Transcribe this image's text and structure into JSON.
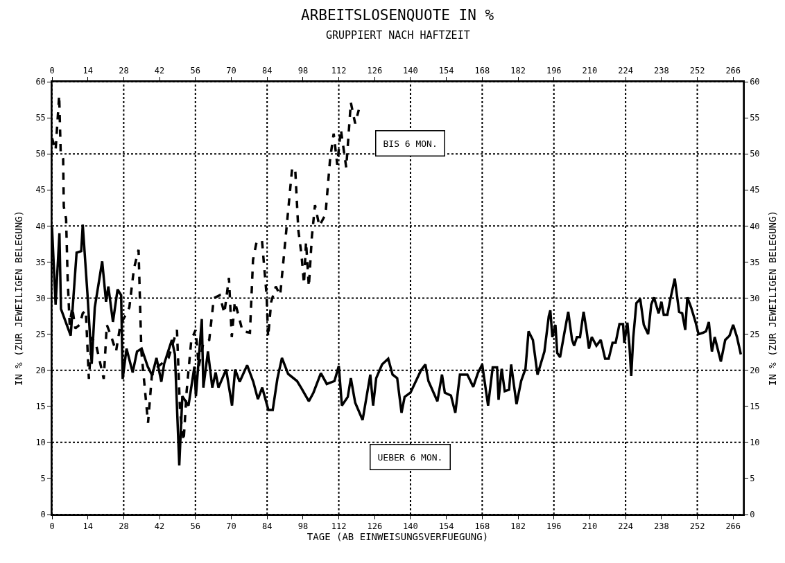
{
  "chart_data": {
    "type": "line",
    "title": "ARBEITSLOSENQUOTE IN %",
    "subtitle": "GRUPPIERT NACH HAFTZEIT",
    "xlabel": "TAGE (AB EINWEISUNGSVERFUEGUNG)",
    "ylabel": "IN % (ZUR JEWEILIGEN BELEGUNG)",
    "y2label": "IN % (ZUR JEWEILIGEN BELEGUNG)",
    "xlim": [
      0,
      270
    ],
    "xticks": [
      0,
      14,
      28,
      42,
      56,
      70,
      84,
      98,
      112,
      126,
      140,
      154,
      168,
      182,
      196,
      210,
      224,
      238,
      252,
      266
    ],
    "x2lim": [
      0,
      270
    ],
    "x2ticks": [
      0,
      14,
      28,
      42,
      56,
      70,
      84,
      98,
      112,
      126,
      140,
      154,
      168,
      182,
      196,
      210,
      224,
      238,
      252,
      266
    ],
    "ylim": [
      0,
      60
    ],
    "yticks": [
      0,
      5,
      10,
      15,
      20,
      25,
      30,
      35,
      40,
      45,
      50,
      55,
      60
    ],
    "y2lim": [
      0,
      60
    ],
    "y2ticks": [
      0,
      5,
      10,
      15,
      20,
      25,
      30,
      35,
      40,
      45,
      50,
      55,
      60
    ],
    "grid": true,
    "legend": false,
    "marker": "none",
    "series": [
      {
        "name": "BIS 6 MON.",
        "color": "#000000",
        "line_style": "dashed",
        "x": [
          0,
          1.4,
          2.8,
          3.4,
          4.35,
          4.6,
          5.5,
          6.1,
          6.9,
          7.9,
          9.1,
          10.8,
          12,
          13.2,
          14.4,
          15.5,
          17.3,
          20.2,
          21.4,
          23.2,
          25,
          26.7,
          28.5,
          30.2,
          32,
          33.8,
          34.9,
          37.5,
          39,
          41.4,
          45.5,
          48.8,
          50,
          51.4,
          52.6,
          54.4,
          56.1,
          57.3,
          59.1,
          61.4,
          63.2,
          65.5,
          67.3,
          69.1,
          70.2,
          71.4,
          73.2,
          74.4,
          77.3,
          78.5,
          79.9,
          82,
          83.8,
          84.4,
          85.6,
          87.4,
          89.1,
          91.5,
          93.8,
          95,
          96.2,
          97.4,
          98.4,
          99.2,
          100.3,
          101.5,
          102.7,
          104.4,
          106.8,
          108.6,
          110,
          111.4,
          112.8,
          114.9,
          116.7,
          118.4,
          119.8
        ],
        "values": [
          52.2,
          50.5,
          58.1,
          50.1,
          49.3,
          42.7,
          41,
          32.8,
          26.3,
          28.7,
          25.8,
          26.3,
          27.9,
          28.3,
          18.8,
          24.6,
          23.4,
          18.8,
          26.3,
          24.6,
          22.6,
          26.3,
          27.5,
          28.7,
          34.1,
          36.7,
          22.6,
          12.7,
          19.3,
          20.5,
          21.7,
          25.6,
          14.3,
          10.2,
          17.2,
          24.2,
          25.6,
          20.5,
          23.8,
          24.2,
          30,
          30.4,
          27.9,
          32.8,
          24.6,
          29.5,
          27.1,
          25.4,
          25.2,
          35.3,
          37.8,
          38,
          30.4,
          24.6,
          29.5,
          31.6,
          30.4,
          39.4,
          48.1,
          47.7,
          39.4,
          36.1,
          32,
          37.8,
          31.6,
          38.6,
          42.9,
          40,
          41.6,
          49.3,
          52.8,
          48.5,
          53.4,
          48.1,
          57.1,
          54.2,
          56.1
        ]
      },
      {
        "name": "UEBER 6 MON.",
        "color": "#000000",
        "line_style": "solid",
        "x": [
          0,
          1.4,
          2.9,
          3.5,
          7.3,
          9.6,
          11.4,
          12,
          13.8,
          15.5,
          16.7,
          19.6,
          21.1,
          22,
          23.8,
          25.6,
          27,
          27.6,
          29.1,
          31.5,
          33.2,
          35,
          37.4,
          39.1,
          40.8,
          42.7,
          43.8,
          46.8,
          48,
          49.7,
          50.9,
          53.3,
          55.6,
          56.2,
          58.5,
          59.1,
          60.9,
          62.6,
          63.9,
          65,
          68,
          70.3,
          71.5,
          73.3,
          76.2,
          78.6,
          80.4,
          82.1,
          84.5,
          86.2,
          88,
          89.8,
          92.2,
          95.7,
          97.4,
          100.3,
          102.1,
          105,
          107.3,
          110.3,
          112,
          113.2,
          115.5,
          116.7,
          118.4,
          121.3,
          124.3,
          125.4,
          126.6,
          128.9,
          131.3,
          133,
          134.8,
          136.5,
          137.7,
          140,
          144.1,
          145.8,
          147,
          150.5,
          152.3,
          153.4,
          155.8,
          157.5,
          159.3,
          162.2,
          164.5,
          166.3,
          168,
          170.3,
          172.1,
          173.8,
          174.4,
          175.6,
          176.8,
          178.5,
          179.3,
          181.4,
          183.2,
          184.9,
          186.1,
          187.8,
          189.6,
          192.3,
          194,
          194.6,
          195.4,
          196.6,
          197.3,
          198.4,
          200,
          201.6,
          203.1,
          203.9,
          205,
          206.2,
          207.6,
          208.8,
          209.7,
          210.8,
          212.6,
          214.3,
          216,
          217.4,
          218.9,
          220.1,
          221.6,
          223,
          223.5,
          224.7,
          225.5,
          226.2,
          227,
          228.2,
          229.7,
          231.1,
          232.8,
          234,
          235.1,
          235.9,
          236.9,
          238,
          238.9,
          240.3,
          241.5,
          243.2,
          244.9,
          246.1,
          247.3,
          248.1,
          249.6,
          251.3,
          252.5,
          254.2,
          255.4,
          256.5,
          257.7,
          258.8,
          261.2,
          262.9,
          264.6,
          266,
          267.5,
          269
        ],
        "values": [
          39.8,
          29.1,
          39,
          28.5,
          24.8,
          36.3,
          36.5,
          40.2,
          30.8,
          20.9,
          28.7,
          35.1,
          29.5,
          31.6,
          26.7,
          31.2,
          30.4,
          18.8,
          23,
          19.7,
          22.6,
          23,
          20.5,
          19.3,
          21.7,
          18.4,
          20.9,
          24.2,
          22.2,
          6.8,
          16.4,
          15.1,
          20.5,
          16.4,
          27.1,
          17.6,
          22.6,
          17.6,
          19.7,
          17.6,
          20.1,
          15.1,
          20.1,
          18.4,
          20.7,
          18.4,
          16,
          17.6,
          14.5,
          14.5,
          18.8,
          21.7,
          19.5,
          18.5,
          17.5,
          15.7,
          16.9,
          19.6,
          18.1,
          18.5,
          20.6,
          15.1,
          16.3,
          18.9,
          15.5,
          13.1,
          19.4,
          15.1,
          18.9,
          20.8,
          21.6,
          19.4,
          18.9,
          14.1,
          16.3,
          16.9,
          20,
          20.8,
          18.5,
          15.7,
          19.4,
          16.9,
          16.5,
          14.1,
          19.4,
          19.4,
          17.7,
          19.6,
          20.8,
          15.1,
          20.4,
          20.4,
          15.9,
          20.2,
          17.1,
          17.3,
          20.8,
          15.3,
          18.5,
          20.2,
          25.4,
          24.2,
          19.4,
          22.6,
          27.5,
          28.3,
          24.6,
          26.3,
          22.4,
          21.8,
          25,
          28.1,
          24.2,
          23.4,
          24.6,
          24.6,
          28.1,
          25.4,
          23,
          24.6,
          23.4,
          24.2,
          21.6,
          21.6,
          23.8,
          23.8,
          26.4,
          26.4,
          23.8,
          26.6,
          23.4,
          19.2,
          24.6,
          29.3,
          29.9,
          26.3,
          25,
          29.1,
          30.1,
          29.1,
          27.9,
          29.5,
          27.7,
          27.7,
          29.9,
          32.7,
          28.1,
          27.9,
          25.6,
          30.1,
          28.7,
          26.7,
          25,
          25.2,
          25.4,
          26.7,
          22.6,
          24.6,
          21.2,
          24.2,
          24.8,
          26.3,
          24.6,
          22.2
        ]
      }
    ]
  }
}
